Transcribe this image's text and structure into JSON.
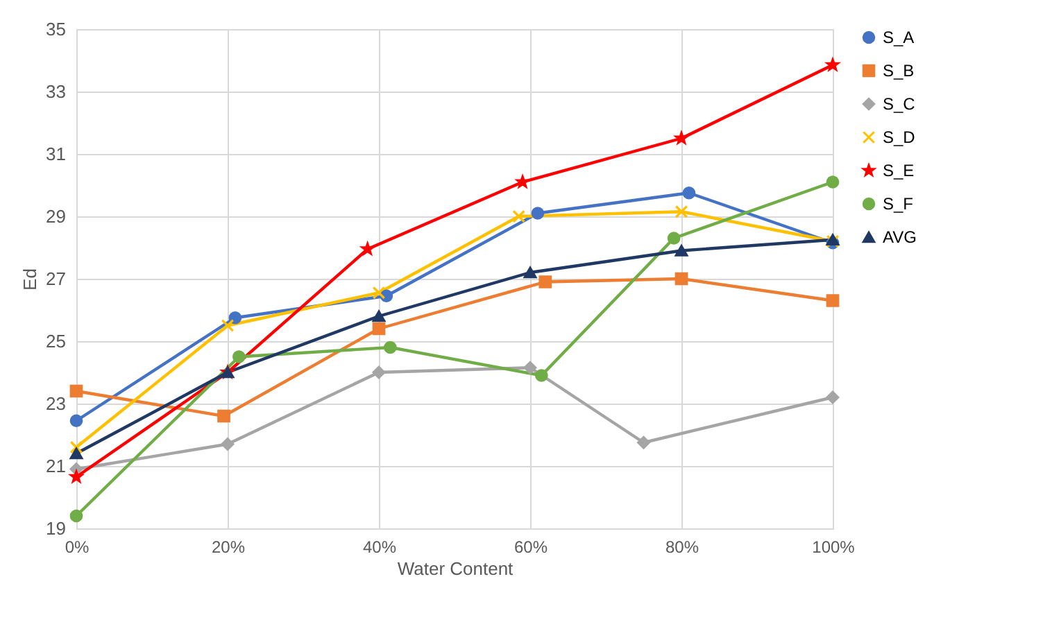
{
  "chart_data": {
    "type": "line",
    "xlabel": "Water Content",
    "ylabel": "Ed",
    "xlim": [
      0,
      100
    ],
    "xticks": [
      {
        "value": 0,
        "label": "0%"
      },
      {
        "value": 20,
        "label": "20%"
      },
      {
        "value": 40,
        "label": "40%"
      },
      {
        "value": 60,
        "label": "60%"
      },
      {
        "value": 80,
        "label": "80%"
      },
      {
        "value": 100,
        "label": "100%"
      }
    ],
    "ylim": [
      19,
      35
    ],
    "yticks": [
      19,
      21,
      23,
      25,
      27,
      29,
      31,
      33,
      35
    ],
    "grid": true,
    "legend": "right",
    "series": [
      {
        "name": "S_A",
        "color": "#4472c4",
        "marker": "circle",
        "x": [
          0,
          21,
          41,
          61,
          81,
          100
        ],
        "values": [
          22.45,
          25.75,
          26.45,
          29.1,
          29.75,
          28.15
        ]
      },
      {
        "name": "S_B",
        "color": "#ed7d31",
        "marker": "square",
        "x": [
          0,
          19.5,
          40,
          62,
          80,
          100
        ],
        "values": [
          23.4,
          22.6,
          25.4,
          26.9,
          27.0,
          26.3
        ]
      },
      {
        "name": "S_C",
        "color": "#a5a5a5",
        "marker": "diamond",
        "x": [
          0,
          20,
          40,
          60,
          75,
          100
        ],
        "values": [
          20.9,
          21.7,
          24.0,
          24.15,
          21.75,
          23.2
        ]
      },
      {
        "name": "S_D",
        "color": "#ffc000",
        "marker": "cross",
        "x": [
          0,
          20,
          40,
          58.5,
          80,
          100
        ],
        "values": [
          21.6,
          25.5,
          26.55,
          29.0,
          29.15,
          28.2
        ]
      },
      {
        "name": "S_E",
        "color": "#ff0000",
        "marker": "star",
        "x": [
          0,
          20,
          38.5,
          59,
          80,
          100
        ],
        "values": [
          20.65,
          24.0,
          27.95,
          30.1,
          31.5,
          33.85
        ]
      },
      {
        "name": "S_F",
        "color": "#70ad47",
        "marker": "circle",
        "x": [
          0,
          21.5,
          41.5,
          61.5,
          79,
          100
        ],
        "values": [
          19.4,
          24.5,
          24.8,
          23.9,
          28.3,
          30.1
        ]
      },
      {
        "name": "AVG",
        "color": "#203864",
        "marker": "triangle",
        "x": [
          0,
          20,
          40,
          60,
          80,
          100
        ],
        "values": [
          21.4,
          24.0,
          25.8,
          27.2,
          27.9,
          28.25
        ]
      }
    ]
  }
}
